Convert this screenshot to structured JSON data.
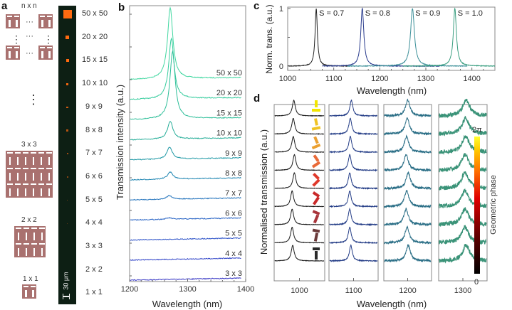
{
  "panels": {
    "a": "a",
    "b": "b",
    "c": "c",
    "d": "d"
  },
  "panel_a": {
    "schematic_labels": [
      "n x n",
      "3 x 3",
      "2 x 2",
      "1 x 1"
    ],
    "ellipsis_h": "···",
    "ellipsis_v": "⋮",
    "array_labels": [
      "50 x 50",
      "20 x 20",
      "15 x 15",
      "10 x 10",
      "9 x 9",
      "8 x 8",
      "7 x 7",
      "6 x 6",
      "5 x 5",
      "4 x 4",
      "3 x 3",
      "2 x 2",
      "1 x 1"
    ],
    "scalebar_label": "30 μm",
    "colors": {
      "unit": "#a9716f",
      "microscope_bg": "#0d1f14",
      "spot": "#ff6a10"
    }
  },
  "chart_data": [
    {
      "id": "b",
      "type": "line",
      "title": "",
      "xlabel": "Wavelength (nm)",
      "ylabel": "Transmission intensity (a.u.)",
      "xlim": [
        1200,
        1400
      ],
      "xticks": [
        1200,
        1300,
        1400
      ],
      "series": [
        {
          "name": "50 x 50",
          "peak_nm": 1270,
          "relative_peak": 1.0,
          "color": "#40d7a0"
        },
        {
          "name": "20 x 20",
          "peak_nm": 1272,
          "relative_peak": 0.85,
          "color": "#35cc9d"
        },
        {
          "name": "15 x 15",
          "peak_nm": 1274,
          "relative_peak": 0.95,
          "color": "#2cbe98"
        },
        {
          "name": "10 x 10",
          "peak_nm": 1270,
          "relative_peak": 0.25,
          "color": "#25ad98"
        },
        {
          "name": "9 x 9",
          "peak_nm": 1269,
          "relative_peak": 0.17,
          "color": "#2099a6"
        },
        {
          "name": "8 x 8",
          "peak_nm": 1270,
          "relative_peak": 0.1,
          "color": "#2287b3"
        },
        {
          "name": "7 x 7",
          "peak_nm": 1268,
          "relative_peak": 0.05,
          "color": "#2474bd"
        },
        {
          "name": "6 x 6",
          "peak_nm": 1268,
          "relative_peak": 0.02,
          "color": "#2662c4"
        },
        {
          "name": "5 x 5",
          "peak_nm": 1268,
          "relative_peak": 0.0,
          "color": "#2c52c8"
        },
        {
          "name": "4 x 4",
          "peak_nm": 1268,
          "relative_peak": 0.0,
          "color": "#3044c8"
        },
        {
          "name": "3 x 3",
          "peak_nm": 1268,
          "relative_peak": 0.0,
          "color": "#3535c4"
        }
      ]
    },
    {
      "id": "c",
      "type": "line",
      "title": "",
      "xlabel": "Wavelength (nm)",
      "ylabel": "Norm. trans. (a.u.)",
      "xlim": [
        1000,
        1450
      ],
      "ylim": [
        0,
        1
      ],
      "xticks": [
        1000,
        1100,
        1200,
        1300,
        1400
      ],
      "yticks": [
        0,
        1
      ],
      "series": [
        {
          "name": "S = 0.7",
          "peak_nm": 1062,
          "range": [
            1000,
            1130
          ],
          "color": "#222222"
        },
        {
          "name": "S = 0.8",
          "peak_nm": 1162,
          "range": [
            1075,
            1330
          ],
          "color": "#283a8c"
        },
        {
          "name": "S = 0.9",
          "peak_nm": 1271,
          "range": [
            1130,
            1390
          ],
          "color": "#3b8f98"
        },
        {
          "name": "S = 1.0",
          "peak_nm": 1363,
          "range": [
            1250,
            1450
          ],
          "color": "#3a9e80"
        }
      ]
    },
    {
      "id": "d",
      "type": "line",
      "title": "",
      "xlabel": "Wavelength (nm)",
      "ylabel": "Normalised transmission (a.u.)",
      "subplots": [
        {
          "xtick": 1000,
          "peaks_nm": [
            990,
            989,
            989,
            991,
            991,
            987,
            987,
            987,
            988
          ],
          "color": "#1a1a1a",
          "noise": 0.01
        },
        {
          "xtick": 1100,
          "peaks_nm": [
            1096,
            1094,
            1094,
            1093,
            1093,
            1093,
            1093,
            1093,
            1095
          ],
          "color": "#233c86",
          "noise": 0.02
        },
        {
          "xtick": 1200,
          "peaks_nm": [
            1200,
            1199,
            1198,
            1197,
            1201,
            1198,
            1197,
            1199,
            1201
          ],
          "color": "#2a6e86",
          "noise": 0.05
        },
        {
          "xtick": 1300,
          "peaks_nm": [
            1306,
            1305,
            1305,
            1304,
            1304,
            1304,
            1304,
            1304,
            1306
          ],
          "color": "#3a9378",
          "noise": 0.1
        }
      ],
      "rotation_angles_deg": [
        0,
        22.5,
        45,
        67.5,
        90,
        112.5,
        135,
        157.5,
        180
      ],
      "rotation_colors": [
        "#f3e600",
        "#f0c324",
        "#eba030",
        "#e96a38",
        "#e03a2c",
        "#c92a2a",
        "#a8343a",
        "#6b3a3a",
        "#2a2a2a"
      ],
      "colorbar": {
        "label": "Geometric phase",
        "min_label": "0",
        "max_label": "2π",
        "colors": [
          "#000000",
          "#5a0000",
          "#c00000",
          "#ff3000",
          "#ff8c00",
          "#ffd000",
          "#ffff40"
        ]
      }
    }
  ]
}
